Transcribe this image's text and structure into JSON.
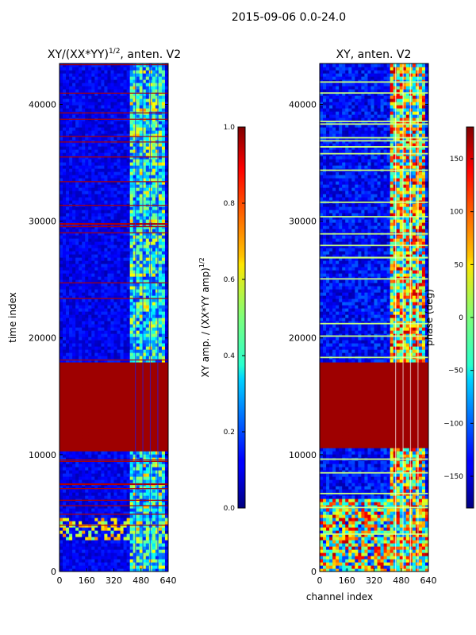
{
  "figure_title": "2015-09-06 0.0-24.0",
  "chart_data": [
    {
      "type": "heatmap",
      "title": "XY/(XX*YY)^{1/2}, anten. V2",
      "title_main": "XY/(XX*YY)",
      "title_exp": "1/2",
      "title_tail": ", anten. V2",
      "xlabel": "",
      "ylabel": "time index",
      "xlim": [
        0,
        640
      ],
      "ylim": [
        0,
        43500
      ],
      "xticks": [
        0,
        160,
        320,
        480,
        640
      ],
      "yticks": [
        0,
        10000,
        20000,
        30000,
        40000
      ],
      "colormap": "jet",
      "colorbar": {
        "label": "XY amp. / (XX*YY amp)^{1/2}",
        "label_main": "XY amp. / (XX*YY amp)",
        "label_exp": "1/2",
        "range": [
          0.0,
          1.0
        ],
        "ticks": [
          "0.0",
          "0.2",
          "0.4",
          "0.6",
          "0.8",
          "1.0"
        ]
      },
      "saturated_band_time_index": [
        10200,
        17900
      ],
      "high_value_channel_range": [
        400,
        620
      ]
    },
    {
      "type": "heatmap",
      "title": "XY, anten. V2",
      "xlabel": "channel index",
      "ylabel": "",
      "xlim": [
        0,
        640
      ],
      "ylim": [
        0,
        43500
      ],
      "xticks": [
        0,
        160,
        320,
        480,
        640
      ],
      "yticks": [
        0,
        10000,
        20000,
        30000,
        40000
      ],
      "colormap": "jet",
      "colorbar": {
        "label": "phase (deg)",
        "range": [
          -180,
          180
        ],
        "ticks": [
          "−150",
          "−100",
          "−50",
          "0",
          "50",
          "100",
          "150"
        ]
      },
      "saturated_band_time_index": [
        10500,
        17900
      ],
      "high_value_channel_range": [
        400,
        620
      ]
    }
  ],
  "colors": {
    "background": "#ffffff",
    "axis": "#000000",
    "jet_low": "#00007f",
    "jet_high": "#7f0000"
  }
}
